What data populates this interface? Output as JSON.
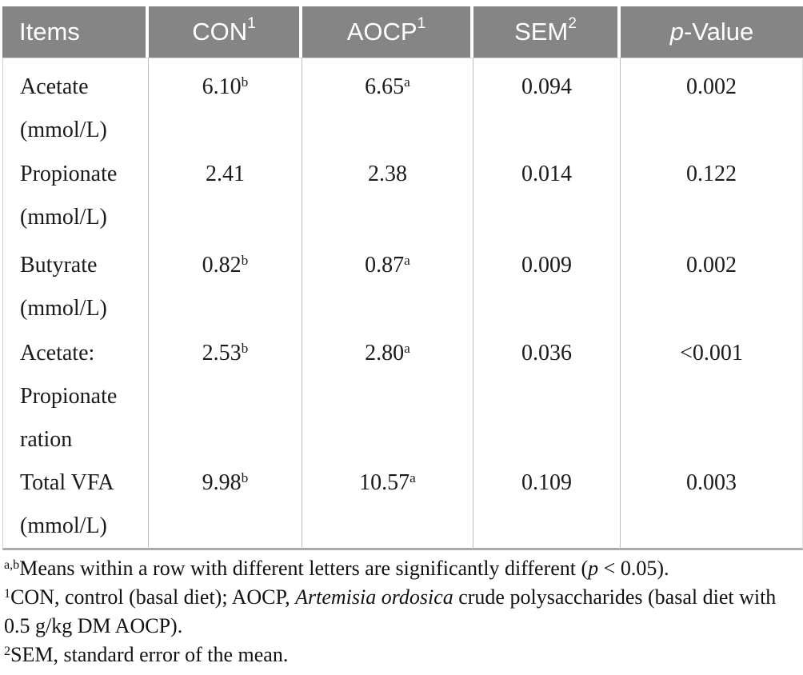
{
  "colors": {
    "header_bg": "#858585",
    "header_text": "#ffffff",
    "grid_line": "#bdbdbd",
    "body_text": "#1b1b1b"
  },
  "table": {
    "columns": [
      {
        "name": "items",
        "align": "left",
        "segments": [
          {
            "t": "Items"
          }
        ]
      },
      {
        "name": "con",
        "align": "center",
        "segments": [
          {
            "t": "CON"
          },
          {
            "sup": "1"
          }
        ]
      },
      {
        "name": "aocp",
        "align": "center",
        "segments": [
          {
            "t": "AOCP"
          },
          {
            "sup": "1"
          }
        ]
      },
      {
        "name": "sem",
        "align": "center",
        "segments": [
          {
            "t": "SEM"
          },
          {
            "sup": "2"
          }
        ]
      },
      {
        "name": "p-value",
        "align": "center",
        "segments": [
          {
            "i": "p"
          },
          {
            "t": "-Value"
          }
        ]
      }
    ],
    "rows": [
      {
        "item_lines": [
          "Acetate",
          "(mmol/L)"
        ],
        "values": [
          [
            {
              "t": "6.10"
            },
            {
              "sup": "b"
            }
          ],
          [
            {
              "t": "6.65"
            },
            {
              "sup": "a"
            }
          ],
          [
            {
              "t": "0.094"
            }
          ],
          [
            {
              "t": "0.002"
            }
          ]
        ]
      },
      {
        "item_lines": [
          "Propionate",
          "(mmol/L)"
        ],
        "values": [
          [
            {
              "t": "2.41"
            }
          ],
          [
            {
              "t": "2.38"
            }
          ],
          [
            {
              "t": "0.014"
            }
          ],
          [
            {
              "t": "0.122"
            }
          ]
        ]
      },
      {
        "item_lines": [
          "Butyrate",
          "(mmol/L)"
        ],
        "values": [
          [
            {
              "t": "0.82"
            },
            {
              "sup": "b"
            }
          ],
          [
            {
              "t": "0.87"
            },
            {
              "sup": "a"
            }
          ],
          [
            {
              "t": "0.009"
            }
          ],
          [
            {
              "t": "0.002"
            }
          ]
        ]
      },
      {
        "item_lines": [
          "Acetate:",
          "Propionate",
          "ration"
        ],
        "values": [
          [
            {
              "t": "2.53"
            },
            {
              "sup": "b"
            }
          ],
          [
            {
              "t": "2.80"
            },
            {
              "sup": "a"
            }
          ],
          [
            {
              "t": "0.036"
            }
          ],
          [
            {
              "t": "<0.001"
            }
          ]
        ]
      },
      {
        "item_lines": [
          "Total VFA",
          "(mmol/L)"
        ],
        "values": [
          [
            {
              "t": "9.98"
            },
            {
              "sup": "b"
            }
          ],
          [
            {
              "t": "10.57"
            },
            {
              "sup": "a"
            }
          ],
          [
            {
              "t": "0.109"
            }
          ],
          [
            {
              "t": "0.003"
            }
          ]
        ]
      }
    ]
  },
  "footnotes": [
    [
      {
        "sup": "a,b"
      },
      {
        "t": "Means within a row with different letters are significantly different ("
      },
      {
        "i": "p"
      },
      {
        "t": " < 0.05)."
      }
    ],
    [
      {
        "sup": "1"
      },
      {
        "t": "CON, control (basal diet); AOCP, "
      },
      {
        "i": "Artemisia ordosica"
      },
      {
        "t": " crude polysaccharides (basal diet with 0.5 g/kg DM AOCP)."
      }
    ],
    [
      {
        "sup": "2"
      },
      {
        "t": "SEM, standard error of the mean."
      }
    ]
  ]
}
